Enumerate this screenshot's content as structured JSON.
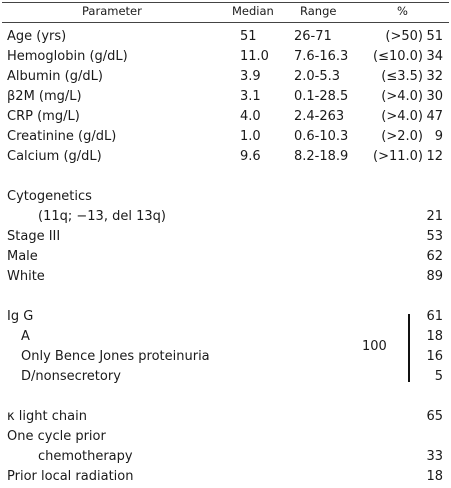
{
  "header": {
    "parameter": "Parameter",
    "median": "Median",
    "range": "Range",
    "percent": "%"
  },
  "labs": [
    {
      "parameter": "Age (yrs)",
      "median": "51",
      "range": "26-71",
      "condition": "(>50)",
      "percent": "51"
    },
    {
      "parameter": "Hemoglobin (g/dL)",
      "median": "11.0",
      "range": "7.6-16.3",
      "condition": "(≤10.0)",
      "percent": "34"
    },
    {
      "parameter": "Albumin (g/dL)",
      "median": "3.9",
      "range": "2.0-5.3",
      "condition": "(≤3.5)",
      "percent": "32"
    },
    {
      "parameter": "β2M (mg/L)",
      "median": "3.1",
      "range": "0.1-28.5",
      "condition": "(>4.0)",
      "percent": "30"
    },
    {
      "parameter": "CRP (mg/L)",
      "median": "4.0",
      "range": "2.4-263",
      "condition": "(>4.0)",
      "percent": "47"
    },
    {
      "parameter": "Creatinine (g/dL)",
      "median": "1.0",
      "range": "0.6-10.3",
      "condition": "(>2.0)",
      "percent": "9"
    },
    {
      "parameter": "Calcium (g/dL)",
      "median": "9.6",
      "range": "8.2-18.9",
      "condition": "(>11.0)",
      "percent": "12"
    }
  ],
  "cytogenetics": {
    "label": "Cytogenetics",
    "detail": "(11q; −13, del 13q)",
    "percent": "21"
  },
  "stage": {
    "label": "Stage III",
    "percent": "53"
  },
  "male": {
    "label": "Male",
    "percent": "62"
  },
  "white": {
    "label": "White",
    "percent": "89"
  },
  "isotype": {
    "igg": {
      "label": "Ig G",
      "percent": "61"
    },
    "a": {
      "label": "A",
      "percent": "18"
    },
    "bence": {
      "label": "Only Bence Jones proteinuria",
      "percent": "16"
    },
    "dnon": {
      "label": "D/nonsecretory",
      "percent": "5"
    },
    "group_total": "100"
  },
  "kappa": {
    "label": "κ light chain",
    "percent": "65"
  },
  "prior_chemo": {
    "label1": "One cycle prior",
    "label2": "chemotherapy",
    "percent": "33"
  },
  "prior_rad": {
    "label": "Prior local radiation",
    "percent": "18"
  }
}
